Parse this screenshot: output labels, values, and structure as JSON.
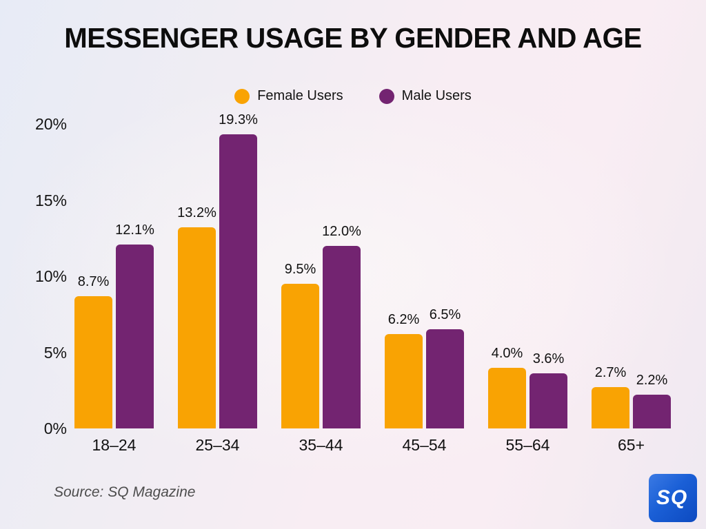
{
  "title": "MESSENGER USAGE BY GENDER AND AGE",
  "source_caption": "Source: SQ Magazine",
  "logo": {
    "text": "SQ",
    "background_color": "#1a5fd6",
    "text_color": "#ffffff"
  },
  "colors": {
    "female_bar": "#F9A303",
    "male_bar": "#732471",
    "title_text": "#0d0d0d",
    "axis_text": "#141414",
    "source_text": "#4d4d4d"
  },
  "chart_data": {
    "type": "bar",
    "title": "MESSENGER USAGE BY GENDER AND AGE",
    "categories": [
      "18–24",
      "25–34",
      "35–44",
      "45–54",
      "55–64",
      "65+"
    ],
    "series": [
      {
        "name": "Female Users",
        "color": "#F9A303",
        "values": [
          8.7,
          13.2,
          9.5,
          6.2,
          4.0,
          2.7
        ],
        "labels": [
          "8.7%",
          "13.2%",
          "9.5%",
          "6.2%",
          "4.0%",
          "2.7%"
        ]
      },
      {
        "name": "Male Users",
        "color": "#732471",
        "values": [
          12.1,
          19.3,
          12.0,
          6.5,
          3.6,
          2.2
        ],
        "labels": [
          "12.1%",
          "19.3%",
          "12.0%",
          "6.5%",
          "3.6%",
          "2.2%"
        ]
      }
    ],
    "xlabel": "",
    "ylabel": "",
    "ylim": [
      0,
      20
    ],
    "ytick_interval": 5,
    "ytick_labels": [
      "0%",
      "5%",
      "10%",
      "15%",
      "20%"
    ],
    "grid": false,
    "legend_position": "top"
  }
}
